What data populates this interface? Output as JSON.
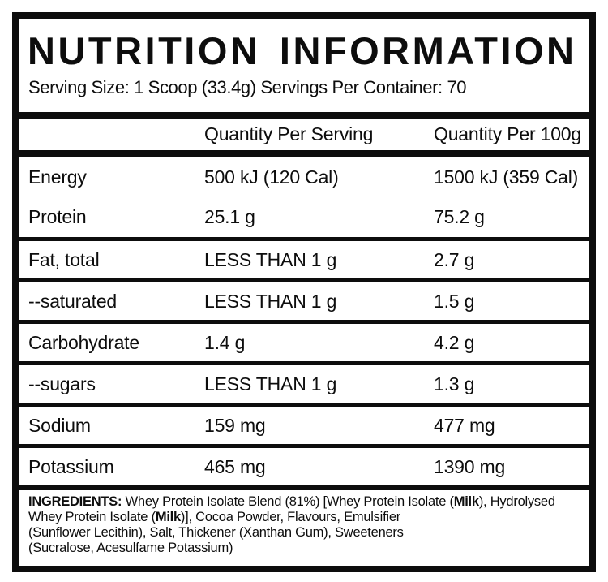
{
  "colors": {
    "ink": "#0d0d0d",
    "background": "#ffffff"
  },
  "label": {
    "title": "NUTRITION INFORMATION",
    "serving_info": "Serving Size: 1 Scoop (33.4g) Servings Per Container: 70",
    "table": {
      "columns": [
        "",
        "Quantity Per Serving",
        "Quantity Per 100g"
      ],
      "rows": [
        {
          "label": "Energy",
          "per_serving": "500 kJ (120 Cal)",
          "per_100g": "1500 kJ (359 Cal)",
          "divider_above": false
        },
        {
          "label": "Protein",
          "per_serving": "25.1 g",
          "per_100g": "75.2 g",
          "divider_above": false
        },
        {
          "label": "Fat, total",
          "per_serving": "LESS THAN 1 g",
          "per_100g": "2.7 g",
          "divider_above": true
        },
        {
          "label": "--saturated",
          "per_serving": "LESS THAN 1 g",
          "per_100g": "1.5 g",
          "divider_above": true
        },
        {
          "label": "Carbohydrate",
          "per_serving": "1.4 g",
          "per_100g": "4.2 g",
          "divider_above": true
        },
        {
          "label": "--sugars",
          "per_serving": "LESS THAN 1 g",
          "per_100g": "1.3 g",
          "divider_above": true
        },
        {
          "label": "Sodium",
          "per_serving": "159 mg",
          "per_100g": "477 mg",
          "divider_above": true
        },
        {
          "label": "Potassium",
          "per_serving": "465 mg",
          "per_100g": "1390 mg",
          "divider_above": true
        }
      ]
    },
    "ingredients": {
      "lines": [
        [
          {
            "text": "INGREDIENTS:",
            "bold": true
          },
          {
            "text": " Whey Protein Isolate Blend (81%) [Whey Protein Isolate (",
            "bold": false
          },
          {
            "text": "Milk",
            "bold": true
          },
          {
            "text": "), Hydrolysed",
            "bold": false
          }
        ],
        [
          {
            "text": "Whey Protein Isolate (",
            "bold": false
          },
          {
            "text": "Milk",
            "bold": true
          },
          {
            "text": ")], Cocoa Powder, Flavours, Emulsifier",
            "bold": false
          }
        ],
        [
          {
            "text": "(Sunflower Lecithin), Salt, Thickener (Xanthan Gum), Sweeteners",
            "bold": false
          }
        ],
        [
          {
            "text": "(Sucralose, Acesulfame Potassium)",
            "bold": false
          }
        ]
      ]
    }
  }
}
